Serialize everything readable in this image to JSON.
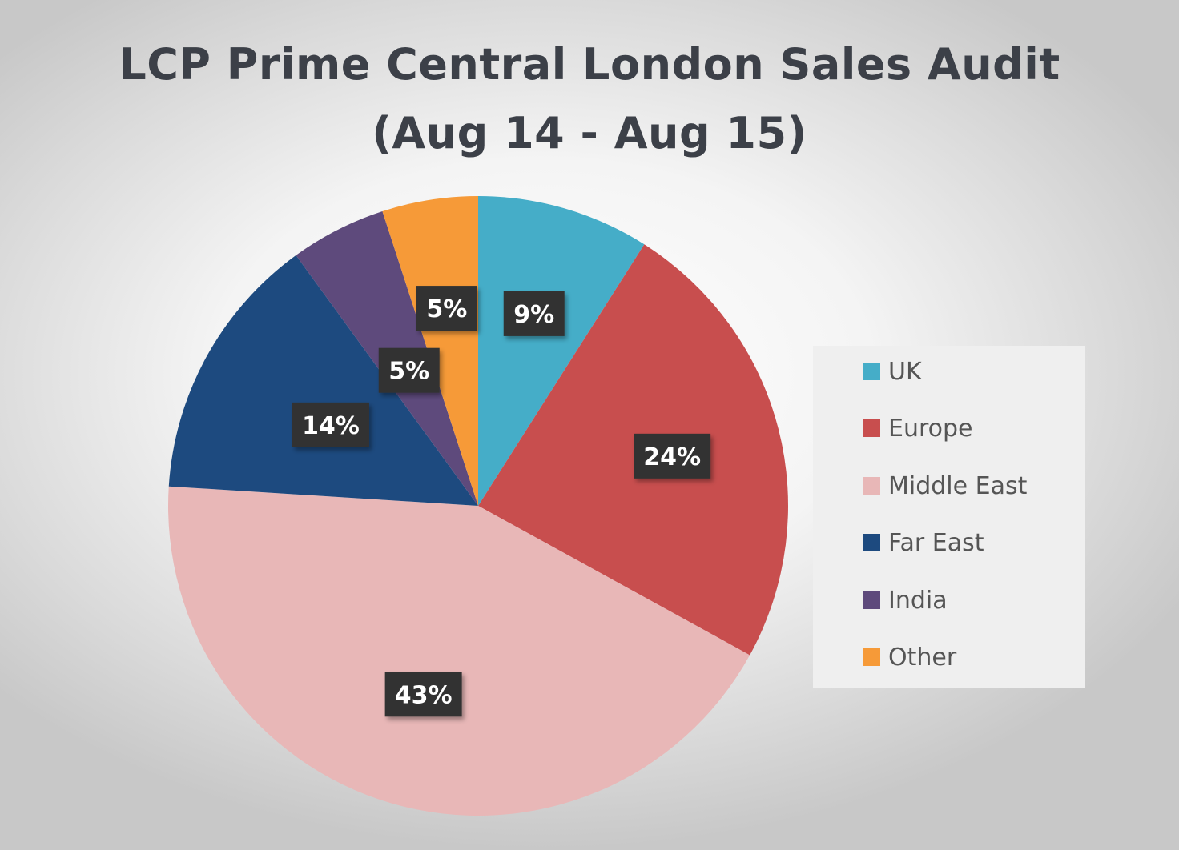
{
  "chart_data": {
    "type": "pie",
    "title": "LCP Prime Central London Sales Audit",
    "subtitle": "(Aug 14 - Aug 15)",
    "start_angle_deg": 0,
    "direction": "clockwise",
    "slices": [
      {
        "name": "UK",
        "value": 9,
        "label": "9%",
        "color": "#45adc8"
      },
      {
        "name": "Europe",
        "value": 24,
        "label": "24%",
        "color": "#c84e4e"
      },
      {
        "name": "Middle East",
        "value": 43,
        "label": "43%",
        "color": "#e8b7b7"
      },
      {
        "name": "Far East",
        "value": 14,
        "label": "14%",
        "color": "#1d4a7f"
      },
      {
        "name": "India",
        "value": 5,
        "label": "5%",
        "color": "#5e4a7c"
      },
      {
        "name": "Other",
        "value": 5,
        "label": "5%",
        "color": "#f69a38"
      }
    ],
    "legend_position": "right",
    "data_label_style": {
      "background": "#333333",
      "color": "#ffffff"
    }
  }
}
